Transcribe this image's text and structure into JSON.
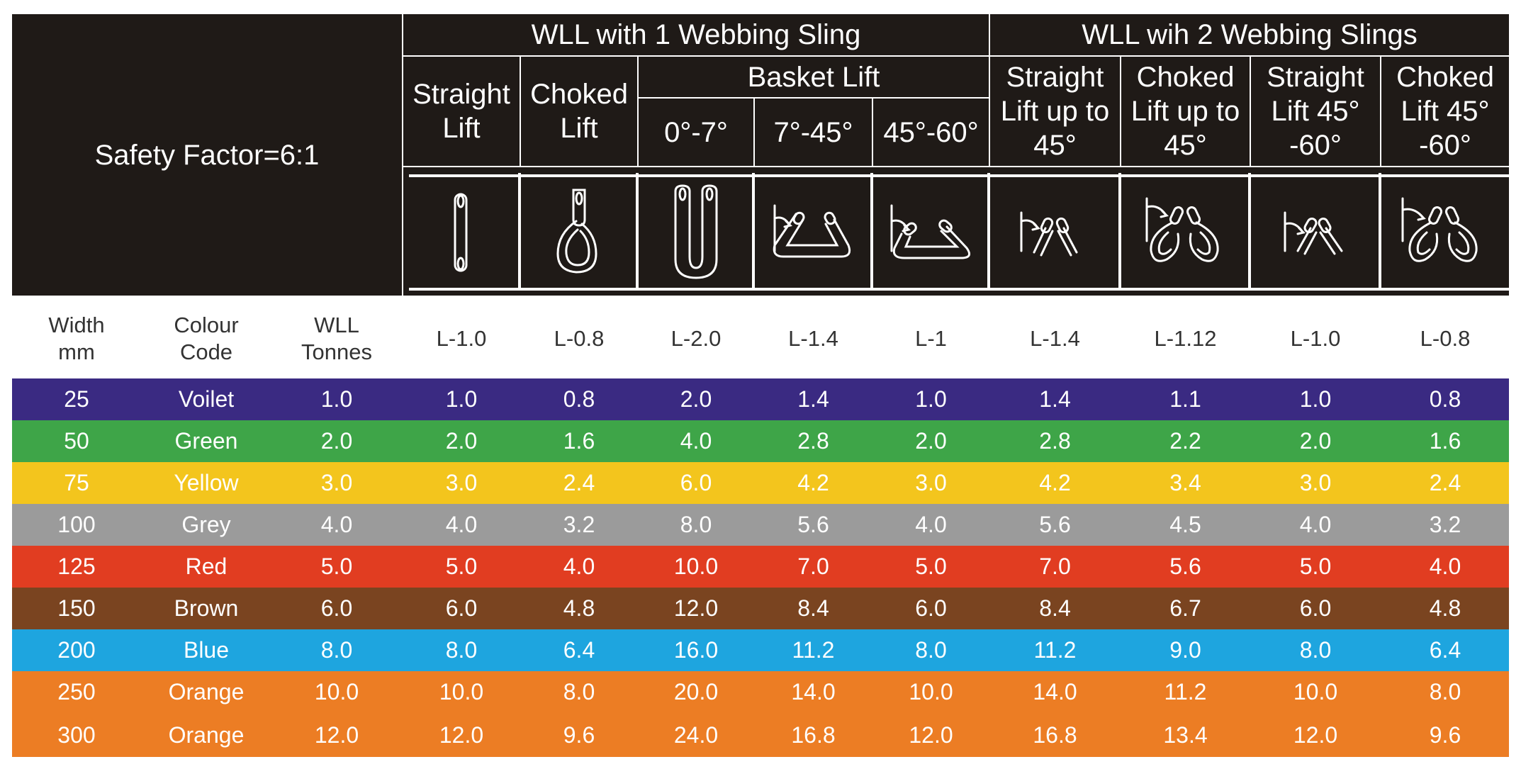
{
  "header": {
    "safety_factor": "Safety Factor=6:1",
    "group_1": "WLL with 1 Webbing Sling",
    "group_2": "WLL wih 2 Webbing Slings",
    "basket_lift": "Basket Lift",
    "cols": [
      {
        "label": "Straight\nLift",
        "icon": "straight-lift-icon"
      },
      {
        "label": "Choked\nLift",
        "icon": "choked-lift-icon"
      },
      {
        "label": "0°-7°",
        "icon": "basket-0-7-icon"
      },
      {
        "label": "7°-45°",
        "icon": "basket-7-45-icon"
      },
      {
        "label": "45°-60°",
        "icon": "basket-45-60-icon"
      },
      {
        "label": "Straight\nLift up to\n45°",
        "icon": "two-straight-45-icon"
      },
      {
        "label": "Choked\nLift up to\n45°",
        "icon": "two-choked-45-icon"
      },
      {
        "label": "Straight\nLift 45°\n-60°",
        "icon": "two-straight-45-60-icon"
      },
      {
        "label": "Choked\nLift  45°\n-60°",
        "icon": "two-choked-45-60-icon"
      }
    ]
  },
  "labels": {
    "width": "Width\nmm",
    "colour": "Colour\nCode",
    "wll": "WLL\nTonnes",
    "codes": [
      "L-1.0",
      "L-0.8",
      "L-2.0",
      "L-1.4",
      "L-1",
      "L-1.4",
      "L-1.12",
      "L-1.0",
      "L-0.8"
    ]
  },
  "rows": [
    {
      "color": "#3a2a82",
      "cells": [
        "25",
        "Voilet",
        "1.0",
        "1.0",
        "0.8",
        "2.0",
        "1.4",
        "1.0",
        "1.4",
        "1.1",
        "1.0",
        "0.8"
      ]
    },
    {
      "color": "#3ea548",
      "cells": [
        "50",
        "Green",
        "2.0",
        "2.0",
        "1.6",
        "4.0",
        "2.8",
        "2.0",
        "2.8",
        "2.2",
        "2.0",
        "1.6"
      ]
    },
    {
      "color": "#f3c51d",
      "cells": [
        "75",
        "Yellow",
        "3.0",
        "3.0",
        "2.4",
        "6.0",
        "4.2",
        "3.0",
        "4.2",
        "3.4",
        "3.0",
        "2.4"
      ]
    },
    {
      "color": "#9b9b9b",
      "cells": [
        "100",
        "Grey",
        "4.0",
        "4.0",
        "3.2",
        "8.0",
        "5.6",
        "4.0",
        "5.6",
        "4.5",
        "4.0",
        "3.2"
      ]
    },
    {
      "color": "#e13d21",
      "cells": [
        "125",
        "Red",
        "5.0",
        "5.0",
        "4.0",
        "10.0",
        "7.0",
        "5.0",
        "7.0",
        "5.6",
        "5.0",
        "4.0"
      ]
    },
    {
      "color": "#7a4420",
      "cells": [
        "150",
        "Brown",
        "6.0",
        "6.0",
        "4.8",
        "12.0",
        "8.4",
        "6.0",
        "8.4",
        "6.7",
        "6.0",
        "4.8"
      ]
    },
    {
      "color": "#1ea5df",
      "cells": [
        "200",
        "Blue",
        "8.0",
        "8.0",
        "6.4",
        "16.0",
        "11.2",
        "8.0",
        "11.2",
        "9.0",
        "8.0",
        "6.4"
      ]
    },
    {
      "color": "#ec7d24",
      "cells": [
        "250",
        "Orange",
        "10.0",
        "10.0",
        "8.0",
        "20.0",
        "14.0",
        "10.0",
        "14.0",
        "11.2",
        "10.0",
        "8.0"
      ]
    },
    {
      "color": "#ec7d24",
      "cells": [
        "300",
        "Orange",
        "12.0",
        "12.0",
        "9.6",
        "24.0",
        "16.8",
        "12.0",
        "16.8",
        "13.4",
        "12.0",
        "9.6"
      ]
    }
  ]
}
